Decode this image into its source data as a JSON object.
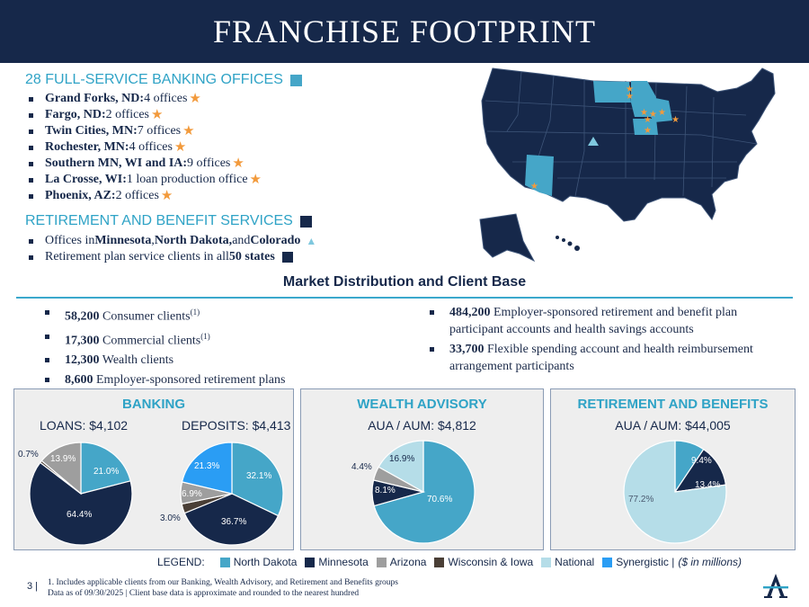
{
  "title": "FRANCHISE FOOTPRINT",
  "colors": {
    "north_dakota": "#45a6c8",
    "minnesota": "#16284a",
    "arizona": "#9e9e9e",
    "wisconsin_iowa": "#4a3f36",
    "national": "#b5dde8",
    "synergistic": "#2a9df4",
    "star": "#f29a3c"
  },
  "banking_offices": {
    "heading": "28 FULL-SERVICE BANKING OFFICES",
    "items": [
      {
        "bold": "Grand Forks, ND:",
        "rest": " 4 offices",
        "icon": "star-icon"
      },
      {
        "bold": "Fargo, ND:",
        "rest": " 2 offices",
        "icon": "star-icon"
      },
      {
        "bold": "Twin Cities, MN:",
        "rest": " 7 offices",
        "icon": "star-icon"
      },
      {
        "bold": "Rochester, MN:",
        "rest": " 4 offices",
        "icon": "star-icon"
      },
      {
        "bold": "Southern MN, WI and IA:",
        "rest": " 9 offices",
        "icon": "star-icon"
      },
      {
        "bold": "La Crosse, WI:",
        "rest": " 1 loan production office",
        "icon": "star-icon"
      },
      {
        "bold": "Phoenix, AZ:",
        "rest": " 2 offices",
        "icon": "star-icon"
      }
    ]
  },
  "retirement_services": {
    "heading": "RETIREMENT AND BENEFIT SERVICES",
    "line1": {
      "a": "Offices in ",
      "b": "Minnesota",
      "c": ", ",
      "d": "North Dakota,",
      "e": " and ",
      "f": "Colorado"
    },
    "line2": {
      "a": "Retirement plan service clients in all ",
      "b": "50 states"
    }
  },
  "market": {
    "heading": "Market Distribution and Client Base",
    "left": [
      {
        "bold": "58,200",
        "rest": " Consumer clients",
        "sup": "(1)"
      },
      {
        "bold": "17,300",
        "rest": " Commercial clients",
        "sup": "(1)"
      },
      {
        "bold": "12,300",
        "rest": " Wealth clients",
        "sup": ""
      },
      {
        "bold": "8,600",
        "rest": " Employer-sponsored retirement plans",
        "sup": ""
      }
    ],
    "right": [
      {
        "bold": "484,200",
        "rest": " Employer-sponsored retirement and benefit plan participant accounts and health savings accounts"
      },
      {
        "bold": "33,700",
        "rest": " Flexible spending account and health reimbursement arrangement participants"
      }
    ]
  },
  "panels": {
    "banking": {
      "title": "BANKING",
      "loans_label": "LOANS: $4,102",
      "deposits_label": "DEPOSITS: $4,413"
    },
    "wealth": {
      "title": "WEALTH ADVISORY",
      "label": "AUA / AUM: $4,812"
    },
    "retirement": {
      "title": "RETIREMENT AND BENEFITS",
      "label": "AUA / AUM: $44,005"
    }
  },
  "chart_data": [
    {
      "type": "pie",
      "title": "LOANS: $4,102",
      "slices": [
        {
          "label": "North Dakota",
          "value": 21.0,
          "text": "21.0%"
        },
        {
          "label": "Minnesota",
          "value": 64.4,
          "text": "64.4%"
        },
        {
          "label": "Wisconsin & Iowa",
          "value": 0.7,
          "text": "0.7%"
        },
        {
          "label": "Arizona",
          "value": 13.9,
          "text": "13.9%"
        }
      ]
    },
    {
      "type": "pie",
      "title": "DEPOSITS: $4,413",
      "slices": [
        {
          "label": "North Dakota",
          "value": 32.1,
          "text": "32.1%"
        },
        {
          "label": "Minnesota",
          "value": 36.7,
          "text": "36.7%"
        },
        {
          "label": "Wisconsin & Iowa",
          "value": 3.0,
          "text": "3.0%"
        },
        {
          "label": "Arizona",
          "value": 6.9,
          "text": "6.9%"
        },
        {
          "label": "Synergistic",
          "value": 21.3,
          "text": "21.3%"
        }
      ]
    },
    {
      "type": "pie",
      "title": "AUA / AUM: $4,812",
      "slices": [
        {
          "label": "North Dakota",
          "value": 70.6,
          "text": "70.6%"
        },
        {
          "label": "Minnesota",
          "value": 8.1,
          "text": "8.1%"
        },
        {
          "label": "Arizona",
          "value": 4.4,
          "text": "4.4%"
        },
        {
          "label": "National",
          "value": 16.9,
          "text": "16.9%"
        }
      ]
    },
    {
      "type": "pie",
      "title": "AUA / AUM: $44,005",
      "slices": [
        {
          "label": "North Dakota",
          "value": 9.4,
          "text": "9.4%"
        },
        {
          "label": "Minnesota",
          "value": 13.4,
          "text": "13.4%"
        },
        {
          "label": "National",
          "value": 77.2,
          "text": "77.2%"
        }
      ]
    }
  ],
  "legend": {
    "label": "LEGEND:",
    "items": [
      "North Dakota",
      "Minnesota",
      "Arizona",
      "Wisconsin & Iowa",
      "National",
      "Synergistic |"
    ],
    "note": "($ in millions)"
  },
  "footer": {
    "page": "3 |",
    "line1": "1. Includes applicable clients from our Banking, Wealth Advisory, and Retirement and Benefits groups",
    "line2": "Data as of 09/30/2025 | Client base data is approximate and rounded to the nearest hundred"
  }
}
